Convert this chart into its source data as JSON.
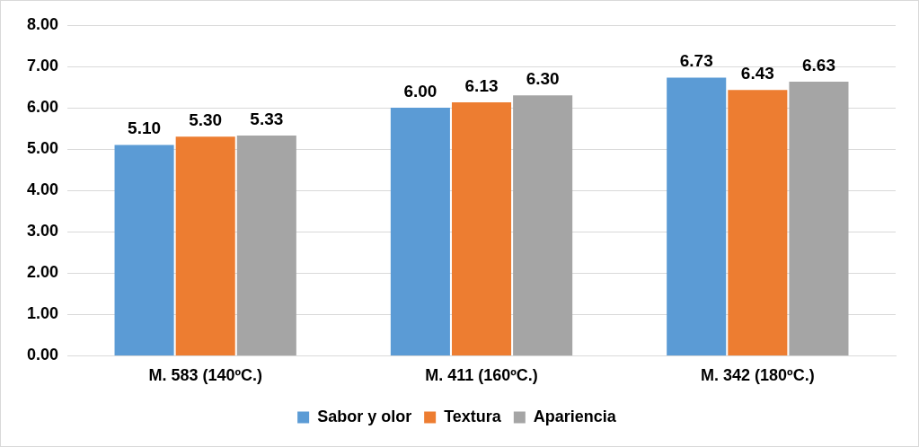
{
  "chart_data": {
    "type": "bar",
    "categories": [
      "M. 583 (140ºC.)",
      "M. 411 (160ºC.)",
      "M. 342 (180ºC.)"
    ],
    "series": [
      {
        "name": "Sabor y olor",
        "color": "#5b9bd5",
        "values": [
          5.1,
          6.0,
          6.73
        ],
        "value_labels": [
          "5.10",
          "6.00",
          "6.73"
        ]
      },
      {
        "name": "Textura",
        "color": "#ed7d31",
        "values": [
          5.3,
          6.13,
          6.43
        ],
        "value_labels": [
          "5.30",
          "6.13",
          "6.43"
        ]
      },
      {
        "name": "Apariencia",
        "color": "#a5a5a5",
        "values": [
          5.33,
          6.3,
          6.63
        ],
        "value_labels": [
          "5.33",
          "6.30",
          "6.63"
        ]
      }
    ],
    "ylim": [
      0,
      8
    ],
    "yticks": [
      {
        "value": 0,
        "label": "0.00"
      },
      {
        "value": 1,
        "label": "1.00"
      },
      {
        "value": 2,
        "label": "2.00"
      },
      {
        "value": 3,
        "label": "3.00"
      },
      {
        "value": 4,
        "label": "4.00"
      },
      {
        "value": 5,
        "label": "5.00"
      },
      {
        "value": 6,
        "label": "6.00"
      },
      {
        "value": 7,
        "label": "7.00"
      },
      {
        "value": 8,
        "label": "8.00"
      }
    ],
    "grid": "y",
    "legend": "bottom"
  }
}
